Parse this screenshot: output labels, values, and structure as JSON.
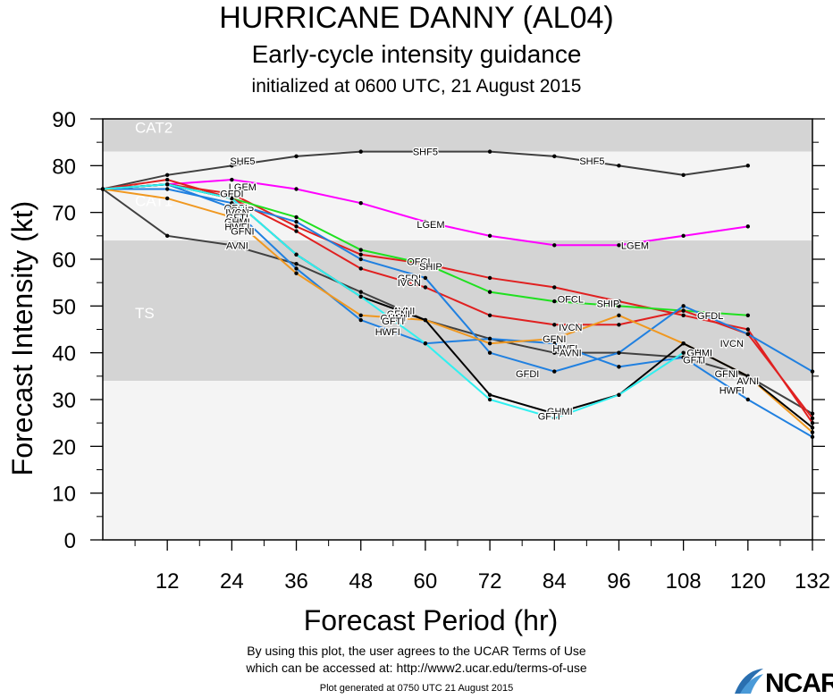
{
  "header": {
    "title": "HURRICANE DANNY (AL04)",
    "subtitle": "Early-cycle intensity guidance",
    "init": "initialized at 0600 UTC, 21 August 2015"
  },
  "footer": {
    "terms_line1": "By using this plot, the user agrees to the UCAR Terms of Use",
    "terms_line2": "which can be accessed at: http://www2.ucar.edu/terms-of-use",
    "generated": "Plot generated at 0750 UTC   21 August 2015",
    "logo_text": "NCAR"
  },
  "chart_data": {
    "type": "line",
    "xlabel": "Forecast Period (hr)",
    "ylabel": "Forecast Intensity (kt)",
    "xlim": [
      0,
      132
    ],
    "ylim": [
      0,
      90
    ],
    "xticks": [
      12,
      24,
      36,
      48,
      60,
      72,
      84,
      96,
      108,
      120,
      132
    ],
    "yticks": [
      0,
      10,
      20,
      30,
      40,
      50,
      60,
      70,
      80,
      90
    ],
    "grid": false,
    "bands": [
      {
        "label": "CAT2",
        "from": 83,
        "to": 90,
        "color": "#d4d4d4"
      },
      {
        "label": "CAT1",
        "from": 64,
        "to": 83,
        "color": "#f4f4f4"
      },
      {
        "label": "TS",
        "from": 34,
        "to": 64,
        "color": "#d4d4d4"
      },
      {
        "label": "",
        "from": 0,
        "to": 34,
        "color": "#f4f4f4"
      }
    ],
    "series": [
      {
        "name": "SHF5",
        "color": "#404040",
        "x": [
          0,
          12,
          24,
          36,
          48,
          60,
          72,
          84,
          96,
          108,
          120
        ],
        "y": [
          75,
          78,
          80,
          82,
          83,
          83,
          83,
          82,
          80,
          78,
          80
        ]
      },
      {
        "name": "LGEM",
        "color": "#ff00ff",
        "x": [
          0,
          12,
          24,
          36,
          48,
          60,
          72,
          84,
          96,
          108,
          120
        ],
        "y": [
          75,
          76,
          77,
          75,
          72,
          68,
          65,
          63,
          63,
          65,
          67
        ]
      },
      {
        "name": "AVNI",
        "color": "#404040",
        "x": [
          0,
          12,
          24,
          36,
          48,
          60,
          72,
          84,
          96,
          108,
          120,
          132
        ],
        "y": [
          75,
          65,
          63,
          59,
          53,
          47,
          43,
          40,
          40,
          39,
          35,
          27
        ]
      },
      {
        "name": "OFCL",
        "color": "#e02020",
        "x": [
          0,
          12,
          24,
          36,
          48,
          60,
          72,
          84,
          96,
          108,
          120,
          132
        ],
        "y": [
          75,
          76,
          74,
          67,
          61,
          59,
          56,
          54,
          51,
          48,
          45,
          25
        ]
      },
      {
        "name": "SHIP",
        "color": "#20e020",
        "x": [
          0,
          12,
          24,
          36,
          48,
          60,
          72,
          84,
          96,
          108,
          120
        ],
        "y": [
          75,
          76,
          73,
          69,
          62,
          59,
          53,
          51,
          50,
          49,
          48
        ]
      },
      {
        "name": "IVCN",
        "color": "#e02020",
        "x": [
          0,
          12,
          24,
          36,
          48,
          60,
          72,
          84,
          96,
          108,
          120,
          132
        ],
        "y": [
          75,
          77,
          73,
          66,
          58,
          54,
          48,
          46,
          46,
          49,
          44,
          26
        ]
      },
      {
        "name": "GFDI",
        "color": "#2080e0",
        "x": [
          0,
          12,
          24,
          36,
          48,
          60,
          72,
          84,
          96,
          108,
          120,
          132
        ],
        "y": [
          75,
          75,
          72,
          68,
          60,
          56,
          40,
          36,
          40,
          50,
          44,
          36
        ]
      },
      {
        "name": "HWFI",
        "color": "#2080e0",
        "x": [
          0,
          12,
          24,
          36,
          48,
          60,
          72,
          84,
          96,
          108,
          120,
          132
        ],
        "y": [
          75,
          76,
          71,
          58,
          47,
          42,
          43,
          42,
          37,
          39,
          30,
          22
        ]
      },
      {
        "name": "GFNI",
        "color": "#f09820",
        "x": [
          0,
          12,
          24,
          36,
          48,
          60,
          72,
          84,
          96,
          108,
          120,
          132
        ],
        "y": [
          75,
          73,
          69,
          57,
          48,
          47,
          42,
          43,
          48,
          42,
          35,
          23
        ]
      },
      {
        "name": "GHMI",
        "color": "#000000",
        "x": [
          0,
          12,
          24,
          36,
          48,
          60,
          72,
          84,
          96,
          108,
          120,
          132
        ],
        "y": [
          75,
          76,
          73,
          61,
          52,
          47,
          31,
          27,
          31,
          42,
          35,
          24
        ]
      },
      {
        "name": "GFTI",
        "color": "#30f0f0",
        "x": [
          0,
          12,
          24,
          36,
          48,
          60,
          72,
          84,
          96,
          108
        ],
        "y": [
          75,
          76,
          73,
          61,
          52,
          42,
          30,
          26,
          31,
          40
        ]
      }
    ],
    "labels": [
      {
        "text": "SHF5",
        "x": 26,
        "y": 81
      },
      {
        "text": "SHF5",
        "x": 60,
        "y": 83
      },
      {
        "text": "SHF5",
        "x": 91,
        "y": 81
      },
      {
        "text": "LGEM",
        "x": 26,
        "y": 75.5
      },
      {
        "text": "GFDI",
        "x": 24,
        "y": 74
      },
      {
        "text": "LGEM",
        "x": 61,
        "y": 67.5
      },
      {
        "text": "LGEM",
        "x": 99,
        "y": 63
      },
      {
        "text": "OFCL",
        "x": 25,
        "y": 71
      },
      {
        "text": "SHIP",
        "x": 26,
        "y": 70.5
      },
      {
        "text": "IVCN",
        "x": 25,
        "y": 70
      },
      {
        "text": "GFTI",
        "x": 25,
        "y": 69
      },
      {
        "text": "GHMI",
        "x": 25,
        "y": 68
      },
      {
        "text": "HWFI",
        "x": 25,
        "y": 67
      },
      {
        "text": "GFNI",
        "x": 26,
        "y": 66
      },
      {
        "text": "AVNI",
        "x": 25,
        "y": 63
      },
      {
        "text": "OFCL",
        "x": 59,
        "y": 59.5
      },
      {
        "text": "SHIP",
        "x": 61,
        "y": 58.5
      },
      {
        "text": "GFDI",
        "x": 57,
        "y": 56
      },
      {
        "text": "IVCN",
        "x": 57,
        "y": 55
      },
      {
        "text": "OFCL",
        "x": 87,
        "y": 51.5
      },
      {
        "text": "SHIP",
        "x": 94,
        "y": 50.5
      },
      {
        "text": "GFDL",
        "x": 113,
        "y": 48
      },
      {
        "text": "IVCN",
        "x": 117,
        "y": 42
      },
      {
        "text": "AVNI",
        "x": 56,
        "y": 49
      },
      {
        "text": "GFNI",
        "x": 55,
        "y": 48.3
      },
      {
        "text": "GHMI",
        "x": 54,
        "y": 47.5
      },
      {
        "text": "GFTI",
        "x": 54,
        "y": 46.8
      },
      {
        "text": "HWFI",
        "x": 53,
        "y": 44.5
      },
      {
        "text": "IVCN",
        "x": 87,
        "y": 45.5
      },
      {
        "text": "GFNI",
        "x": 84,
        "y": 43
      },
      {
        "text": "HWFI",
        "x": 86,
        "y": 41
      },
      {
        "text": "AVNI",
        "x": 87,
        "y": 40
      },
      {
        "text": "GFDI",
        "x": 79,
        "y": 35.5
      },
      {
        "text": "GHMI",
        "x": 111,
        "y": 40
      },
      {
        "text": "GFTI",
        "x": 110,
        "y": 38.5
      },
      {
        "text": "GFNI",
        "x": 116,
        "y": 35.5
      },
      {
        "text": "AVNI",
        "x": 120,
        "y": 34
      },
      {
        "text": "HWFI",
        "x": 117,
        "y": 32
      },
      {
        "text": "GHMI",
        "x": 85,
        "y": 27.5
      },
      {
        "text": "GFTI",
        "x": 83,
        "y": 26.5
      }
    ]
  }
}
